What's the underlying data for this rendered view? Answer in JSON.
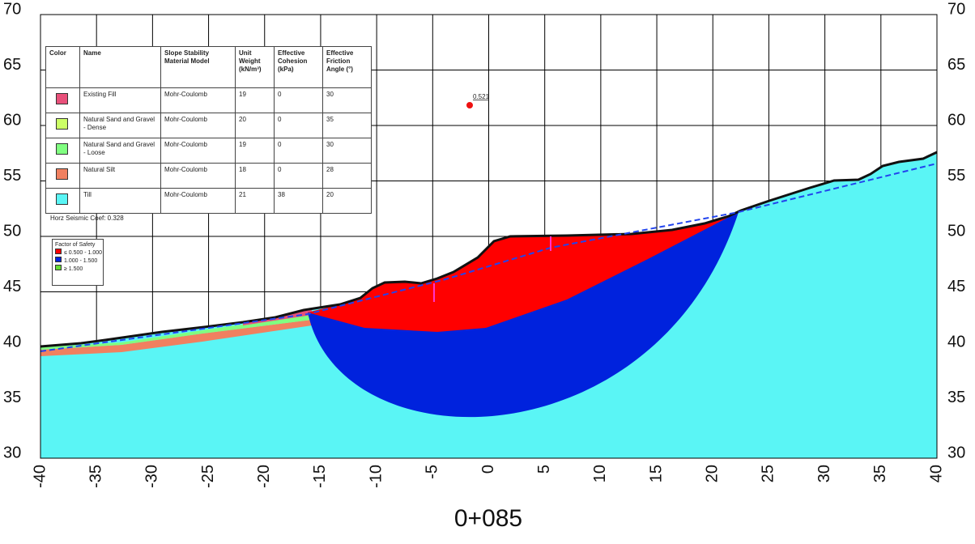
{
  "section_label": "0+085",
  "x_axis": {
    "range": [
      -40,
      40
    ],
    "ticks": [
      -40,
      -35,
      -30,
      -25,
      -20,
      -15,
      -10,
      -5,
      0,
      5,
      10,
      15,
      20,
      25,
      30,
      35,
      40
    ]
  },
  "y_axis": {
    "range": [
      30,
      70
    ],
    "ticks": [
      30,
      35,
      40,
      45,
      50,
      55,
      60,
      65,
      70
    ]
  },
  "materials": {
    "headers": [
      "Color",
      "Name",
      "Slope Stability Material Model",
      "Unit Weight (kN/m³)",
      "Effective Cohesion (kPa)",
      "Effective Friction Angle (°)"
    ],
    "rows": [
      {
        "color": "#e8507a",
        "name": "Existing Fill",
        "model": "Mohr-Coulomb",
        "unit_weight": 19,
        "cohesion": 0,
        "friction": 30
      },
      {
        "color": "#ccff66",
        "name": "Natural Sand and Gravel - Dense",
        "model": "Mohr-Coulomb",
        "unit_weight": 20,
        "cohesion": 0,
        "friction": 35
      },
      {
        "color": "#80ff80",
        "name": "Natural Sand and Gravel - Loose",
        "model": "Mohr-Coulomb",
        "unit_weight": 19,
        "cohesion": 0,
        "friction": 30
      },
      {
        "color": "#f08060",
        "name": "Natural Silt",
        "model": "Mohr-Coulomb",
        "unit_weight": 18,
        "cohesion": 0,
        "friction": 28
      },
      {
        "color": "#5af5f5",
        "name": "Till",
        "model": "Mohr-Coulomb",
        "unit_weight": 21,
        "cohesion": 38,
        "friction": 20
      }
    ]
  },
  "seismic": "Horz Seismic Coef: 0.328",
  "fos_legend": {
    "title": "Factor of Safety",
    "items": [
      {
        "label": "≤ 0.500 - 1.000",
        "color": "#ff0000"
      },
      {
        "label": "1.000 - 1.500",
        "color": "#0022dd"
      },
      {
        "label": "≥ 1.500",
        "color": "#66dd33"
      }
    ]
  },
  "critical_fos": "0.521"
}
